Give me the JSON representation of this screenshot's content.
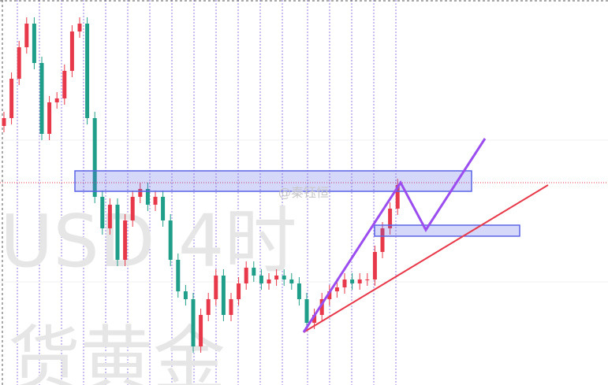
{
  "chart_data": {
    "type": "candlestick",
    "watermark": "@秦钰恒",
    "background_texts": [
      "USD 4时",
      "货黄金"
    ],
    "up_color": "#e8394a",
    "down_color": "#1f9e89",
    "ylim": [
      0,
      489
    ],
    "open": [
      329,
      339,
      389,
      429,
      459,
      409,
      319,
      359,
      364,
      399,
      449,
      459,
      339,
      239,
      199,
      229,
      159,
      209,
      239,
      249,
      229,
      239,
      209,
      159,
      119,
      109,
      49,
      89,
      109,
      139,
      89,
      109,
      129,
      149,
      139,
      129,
      134,
      139,
      134,
      129,
      109,
      79,
      89,
      109,
      119,
      124,
      134,
      129,
      134,
      134,
      169,
      199,
      224
    ],
    "high": [
      347,
      397,
      437,
      467,
      467,
      417,
      367,
      372,
      407,
      457,
      467,
      467,
      347,
      247,
      237,
      237,
      217,
      247,
      257,
      257,
      247,
      247,
      217,
      167,
      127,
      117,
      97,
      117,
      147,
      147,
      117,
      137,
      157,
      157,
      147,
      142,
      147,
      147,
      142,
      137,
      117,
      97,
      117,
      127,
      132,
      142,
      142,
      142,
      142,
      177,
      207,
      232,
      262
    ],
    "low": [
      321,
      331,
      381,
      421,
      401,
      311,
      311,
      351,
      356,
      391,
      441,
      331,
      231,
      191,
      191,
      151,
      151,
      201,
      231,
      221,
      221,
      201,
      151,
      111,
      101,
      41,
      41,
      81,
      101,
      81,
      81,
      101,
      121,
      131,
      121,
      121,
      126,
      126,
      121,
      101,
      71,
      71,
      81,
      101,
      111,
      116,
      121,
      121,
      126,
      126,
      161,
      191,
      216
    ],
    "close": [
      339,
      389,
      429,
      459,
      409,
      319,
      359,
      364,
      399,
      449,
      459,
      339,
      239,
      199,
      229,
      159,
      209,
      239,
      249,
      229,
      239,
      209,
      159,
      119,
      109,
      49,
      89,
      109,
      139,
      89,
      109,
      129,
      149,
      139,
      129,
      134,
      139,
      134,
      129,
      109,
      79,
      89,
      109,
      119,
      124,
      134,
      129,
      134,
      134,
      169,
      199,
      224,
      254
    ]
  }
}
